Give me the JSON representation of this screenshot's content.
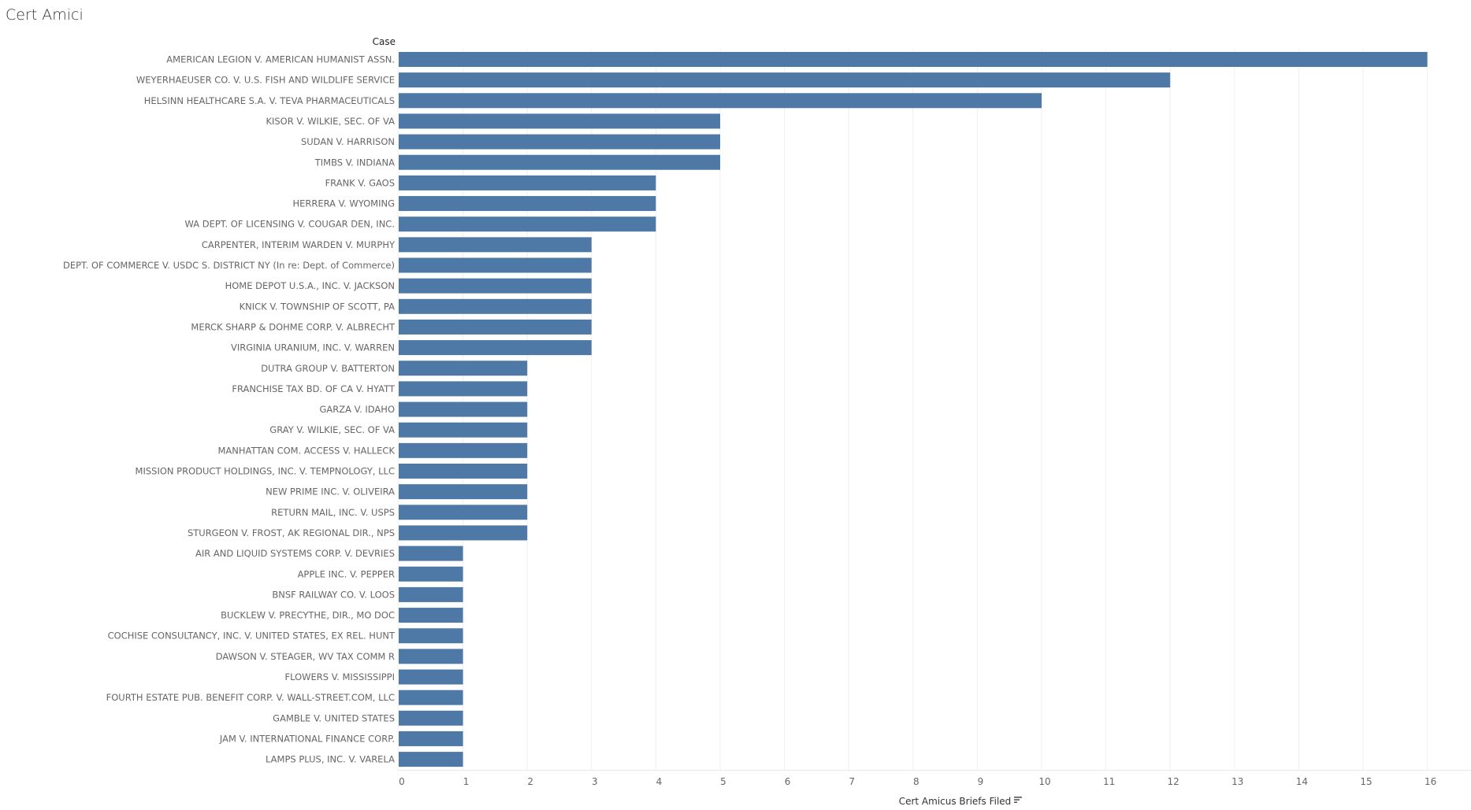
{
  "title": "Cert Amici",
  "chart_data": {
    "type": "bar",
    "orientation": "horizontal",
    "ylabel": "Case",
    "xlabel": "Cert Amicus Briefs Filed",
    "xlim": [
      0,
      16
    ],
    "xticks": [
      0,
      1,
      2,
      3,
      4,
      5,
      6,
      7,
      8,
      9,
      10,
      11,
      12,
      13,
      14,
      15,
      16
    ],
    "grid": true,
    "bar_color": "#4e79a7",
    "sort_icon": "sort-descending-icon",
    "categories": [
      "AMERICAN LEGION V. AMERICAN HUMANIST ASSN.",
      "WEYERHAEUSER CO. V. U.S. FISH AND WILDLIFE SERVICE",
      "HELSINN HEALTHCARE S.A. V. TEVA PHARMACEUTICALS",
      "KISOR V. WILKIE, SEC. OF VA",
      "SUDAN V. HARRISON",
      "TIMBS V. INDIANA",
      "FRANK V. GAOS",
      "HERRERA V. WYOMING",
      "WA DEPT. OF LICENSING V. COUGAR DEN, INC.",
      "CARPENTER, INTERIM WARDEN V. MURPHY",
      "DEPT. OF COMMERCE V. USDC S. DISTRICT NY  (In re: Dept. of Commerce)",
      "HOME DEPOT U.S.A., INC. V. JACKSON",
      "KNICK V. TOWNSHIP OF SCOTT, PA",
      "MERCK SHARP & DOHME CORP. V. ALBRECHT",
      "VIRGINIA URANIUM, INC. V. WARREN",
      "DUTRA GROUP V. BATTERTON",
      "FRANCHISE TAX BD. OF CA V. HYATT",
      "GARZA V. IDAHO",
      "GRAY V. WILKIE, SEC. OF VA",
      "MANHATTAN COM. ACCESS V. HALLECK",
      "MISSION PRODUCT HOLDINGS, INC. V. TEMPNOLOGY, LLC",
      "NEW PRIME INC. V. OLIVEIRA",
      "RETURN MAIL, INC. V. USPS",
      "STURGEON V. FROST, AK REGIONAL DIR., NPS",
      "AIR AND LIQUID SYSTEMS CORP. V. DEVRIES",
      "APPLE INC. V. PEPPER",
      "BNSF RAILWAY CO. V. LOOS",
      "BUCKLEW V. PRECYTHE, DIR., MO DOC",
      "COCHISE CONSULTANCY, INC. V. UNITED STATES, EX REL. HUNT",
      "DAWSON V. STEAGER, WV TAX COMM R",
      "FLOWERS V. MISSISSIPPI",
      "FOURTH ESTATE PUB. BENEFIT CORP. V. WALL-STREET.COM, LLC",
      "GAMBLE V. UNITED STATES",
      "JAM V. INTERNATIONAL FINANCE CORP.",
      "LAMPS PLUS, INC. V. VARELA"
    ],
    "values": [
      16,
      12,
      10,
      5,
      5,
      5,
      4,
      4,
      4,
      3,
      3,
      3,
      3,
      3,
      3,
      2,
      2,
      2,
      2,
      2,
      2,
      2,
      2,
      2,
      1,
      1,
      1,
      1,
      1,
      1,
      1,
      1,
      1,
      1,
      1
    ]
  }
}
